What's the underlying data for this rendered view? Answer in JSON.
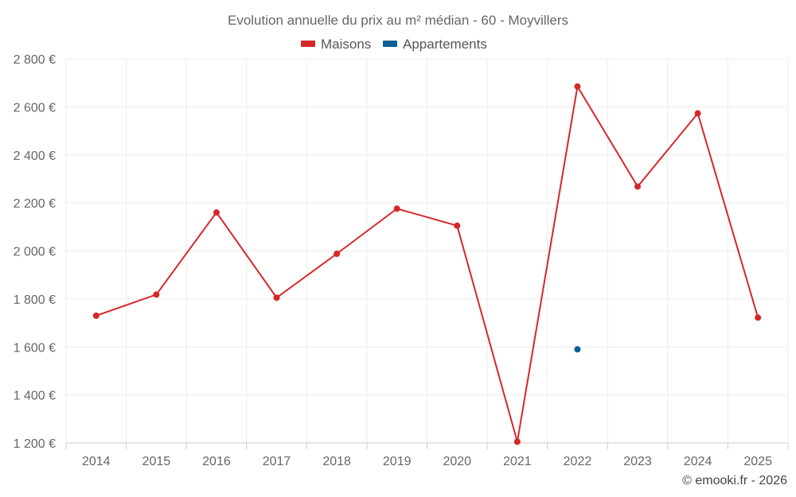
{
  "chart_data": {
    "type": "line",
    "title": "Evolution annuelle du prix au m² médian - 60 - Moyvillers",
    "categories": [
      "2014",
      "2015",
      "2016",
      "2017",
      "2018",
      "2019",
      "2020",
      "2021",
      "2022",
      "2023",
      "2024",
      "2025"
    ],
    "series": [
      {
        "name": "Maisons",
        "color": "#d62728",
        "values": [
          1730,
          1818,
          2160,
          1805,
          1988,
          2176,
          2105,
          1205,
          2685,
          2268,
          2573,
          1722
        ]
      },
      {
        "name": "Appartements",
        "color": "#0b5f96",
        "values": [
          null,
          null,
          null,
          null,
          null,
          null,
          null,
          null,
          1590,
          null,
          null,
          null
        ]
      }
    ],
    "ylim": [
      1200,
      2800
    ],
    "yticks": [
      1200,
      1400,
      1600,
      1800,
      2000,
      2200,
      2400,
      2600,
      2800
    ],
    "ytick_labels": [
      "1 200 €",
      "1 400 €",
      "1 600 €",
      "1 800 €",
      "2 000 €",
      "2 200 €",
      "2 400 €",
      "2 600 €",
      "2 800 €"
    ],
    "grid": true,
    "legend_position": "top-center"
  },
  "credit": "© emooki.fr - 2026"
}
